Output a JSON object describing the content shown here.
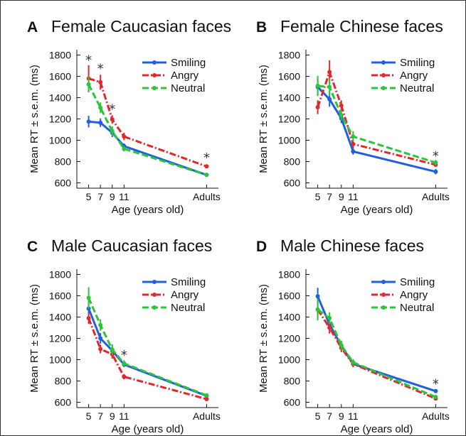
{
  "colors": {
    "smiling": "#1f5fe0",
    "angry": "#e3262b",
    "neutral": "#2bc43a"
  },
  "chart_data": [
    {
      "type": "line",
      "letter": "A",
      "title": "Female Caucasian faces",
      "xlabel": "Age (years old)",
      "ylabel": "Mean RT ± s.e.m. (ms)",
      "categories": [
        "5",
        "7",
        "9",
        "11",
        "Adults"
      ],
      "x": [
        5,
        7,
        9,
        11,
        25
      ],
      "ylim": [
        550,
        1850
      ],
      "yticks": [
        600,
        800,
        1000,
        1200,
        1400,
        1600,
        1800
      ],
      "legend": "top-right",
      "series": [
        {
          "name": "Smiling",
          "values": [
            1175,
            1165,
            1070,
            945,
            675
          ],
          "errors": [
            55,
            40,
            40,
            25,
            15
          ]
        },
        {
          "name": "Angry",
          "values": [
            1580,
            1545,
            1195,
            1035,
            755
          ],
          "errors": [
            125,
            70,
            40,
            35,
            15
          ]
        },
        {
          "name": "Neutral",
          "values": [
            1525,
            1305,
            1085,
            920,
            675
          ],
          "errors": [
            75,
            50,
            45,
            25,
            15
          ]
        }
      ],
      "significance": [
        {
          "x": 5,
          "y": 1760,
          "label": "*"
        },
        {
          "x": 7,
          "y": 1680,
          "label": "*"
        },
        {
          "x": 9,
          "y": 1300,
          "label": "*"
        },
        {
          "x": 25,
          "y": 845,
          "label": "*"
        }
      ]
    },
    {
      "type": "line",
      "letter": "B",
      "title": "Female Chinese faces",
      "xlabel": "Age (years old)",
      "ylabel": "Mean RT ± s.e.m. (ms)",
      "categories": [
        "5",
        "7",
        "9",
        "11",
        "Adults"
      ],
      "x": [
        5,
        7,
        9,
        11,
        25
      ],
      "ylim": [
        550,
        1850
      ],
      "yticks": [
        600,
        800,
        1000,
        1200,
        1400,
        1600,
        1800
      ],
      "legend": "top-right",
      "series": [
        {
          "name": "Smiling",
          "values": [
            1500,
            1385,
            1205,
            895,
            705
          ],
          "errors": [
            80,
            70,
            45,
            30,
            25
          ]
        },
        {
          "name": "Angry",
          "values": [
            1310,
            1640,
            1325,
            965,
            770
          ],
          "errors": [
            65,
            110,
            50,
            40,
            20
          ]
        },
        {
          "name": "Neutral",
          "values": [
            1510,
            1500,
            1235,
            1035,
            790
          ],
          "errors": [
            95,
            80,
            45,
            50,
            25
          ]
        }
      ],
      "significance": [
        {
          "x": 25,
          "y": 860,
          "label": "*"
        }
      ]
    },
    {
      "type": "line",
      "letter": "C",
      "title": "Male Caucasian faces",
      "xlabel": "Age (years old)",
      "ylabel": "Mean RT ± s.e.m. (ms)",
      "categories": [
        "5",
        "7",
        "9",
        "11",
        "Adults"
      ],
      "x": [
        5,
        7,
        9,
        11,
        25
      ],
      "ylim": [
        550,
        1850
      ],
      "yticks": [
        600,
        800,
        1000,
        1200,
        1400,
        1600,
        1800
      ],
      "legend": "top-right",
      "series": [
        {
          "name": "Smiling",
          "values": [
            1480,
            1200,
            1085,
            955,
            660
          ],
          "errors": [
            60,
            50,
            45,
            25,
            15
          ]
        },
        {
          "name": "Angry",
          "values": [
            1390,
            1100,
            1050,
            840,
            630
          ],
          "errors": [
            55,
            40,
            40,
            25,
            15
          ]
        },
        {
          "name": "Neutral",
          "values": [
            1580,
            1325,
            1095,
            965,
            665
          ],
          "errors": [
            100,
            55,
            50,
            30,
            15
          ]
        }
      ],
      "significance": [
        {
          "x": 11,
          "y": 1050,
          "label": "*"
        }
      ]
    },
    {
      "type": "line",
      "letter": "D",
      "title": "Male Chinese faces",
      "xlabel": "Age (years old)",
      "ylabel": "Mean RT ± s.e.m. (ms)",
      "categories": [
        "5",
        "7",
        "9",
        "11",
        "Adults"
      ],
      "x": [
        5,
        7,
        9,
        11,
        25
      ],
      "ylim": [
        550,
        1850
      ],
      "yticks": [
        600,
        800,
        1000,
        1200,
        1400,
        1600,
        1800
      ],
      "legend": "top-right",
      "series": [
        {
          "name": "Smiling",
          "values": [
            1595,
            1330,
            1130,
            960,
            705
          ],
          "errors": [
            80,
            55,
            45,
            25,
            15
          ]
        },
        {
          "name": "Angry",
          "values": [
            1470,
            1300,
            1110,
            960,
            635
          ],
          "errors": [
            70,
            55,
            40,
            30,
            15
          ]
        },
        {
          "name": "Neutral",
          "values": [
            1470,
            1390,
            1135,
            975,
            650
          ],
          "errors": [
            100,
            55,
            45,
            30,
            15
          ]
        }
      ],
      "significance": [
        {
          "x": 25,
          "y": 780,
          "label": "*"
        }
      ]
    }
  ]
}
